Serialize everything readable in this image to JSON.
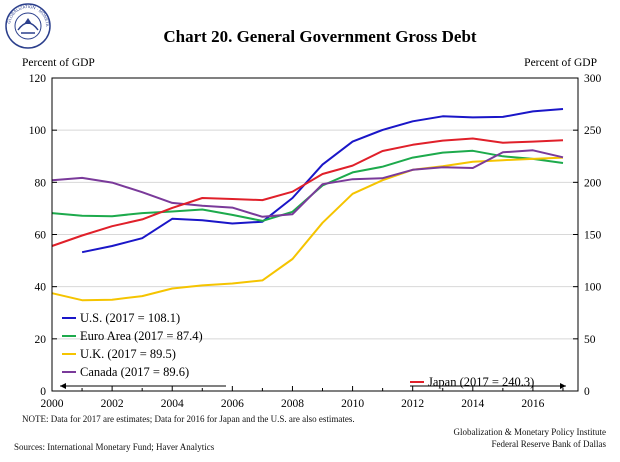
{
  "chart_data": {
    "type": "line",
    "title": "Chart 20. General Government Gross Debt",
    "ylabel_left": "Percent of GDP",
    "ylabel_right": "Percent of GDP",
    "ylim_left": [
      0,
      120
    ],
    "ylim_right": [
      0,
      300
    ],
    "yticks_left": [
      "0",
      "20",
      "40",
      "60",
      "80",
      "100",
      "120"
    ],
    "yticks_right": [
      "0",
      "50",
      "100",
      "150",
      "200",
      "250",
      "300"
    ],
    "xlim": [
      2000,
      2017.5
    ],
    "xticks": [
      "2000",
      "2002",
      "2004",
      "2006",
      "2008",
      "2010",
      "2012",
      "2014",
      "2016"
    ],
    "series": [
      {
        "name": "U.S.",
        "legend": "U.S. (2017 = 108.1)",
        "axis": "left",
        "color": "#1a16c8",
        "x": [
          2001,
          2002,
          2003,
          2004,
          2005,
          2006,
          2007,
          2008,
          2009,
          2010,
          2011,
          2012,
          2013,
          2014,
          2015,
          2016,
          2017
        ],
        "values": [
          53.2,
          55.6,
          58.6,
          66.0,
          65.5,
          64.2,
          64.9,
          74.0,
          86.8,
          95.6,
          100.1,
          103.4,
          105.3,
          104.9,
          105.1,
          107.2,
          108.1
        ]
      },
      {
        "name": "Euro Area",
        "legend": "Euro Area (2017 = 87.4)",
        "axis": "left",
        "color": "#1daa4c",
        "x": [
          2000,
          2001,
          2002,
          2003,
          2004,
          2005,
          2006,
          2007,
          2008,
          2009,
          2010,
          2011,
          2012,
          2013,
          2014,
          2015,
          2016,
          2017
        ],
        "values": [
          68.2,
          67.2,
          67.0,
          68.2,
          68.8,
          69.6,
          67.5,
          65.2,
          68.7,
          78.8,
          83.8,
          86.0,
          89.5,
          91.4,
          92.1,
          90.0,
          89.0,
          87.4
        ]
      },
      {
        "name": "U.K.",
        "legend": "U.K. (2017 = 89.5)",
        "axis": "left",
        "color": "#f5c400",
        "x": [
          2000,
          2001,
          2002,
          2003,
          2004,
          2005,
          2006,
          2007,
          2008,
          2009,
          2010,
          2011,
          2012,
          2013,
          2014,
          2015,
          2016,
          2017
        ],
        "values": [
          37.5,
          34.8,
          35.0,
          36.4,
          39.3,
          40.5,
          41.2,
          42.4,
          50.6,
          64.5,
          75.6,
          80.8,
          84.8,
          86.2,
          87.9,
          88.5,
          89.0,
          89.5
        ]
      },
      {
        "name": "Canada",
        "legend": "Canada (2017 = 89.6)",
        "axis": "left",
        "color": "#7a3a9a",
        "x": [
          2000,
          2001,
          2002,
          2003,
          2004,
          2005,
          2006,
          2007,
          2008,
          2009,
          2010,
          2011,
          2012,
          2013,
          2014,
          2015,
          2016,
          2017
        ],
        "values": [
          80.8,
          81.7,
          79.9,
          76.2,
          72.1,
          71.0,
          70.3,
          66.8,
          67.8,
          79.3,
          81.2,
          81.6,
          84.8,
          85.8,
          85.5,
          91.5,
          92.3,
          89.6
        ]
      },
      {
        "name": "Japan",
        "legend": "Japan (2017 = 240.3)",
        "axis": "right",
        "color": "#e0202a",
        "x": [
          2000,
          2001,
          2002,
          2003,
          2004,
          2005,
          2006,
          2007,
          2008,
          2009,
          2010,
          2011,
          2012,
          2013,
          2014,
          2015,
          2016,
          2017
        ],
        "values": [
          139.0,
          149.0,
          158.0,
          164.5,
          175.5,
          185.0,
          184.0,
          183.0,
          191.0,
          208.0,
          216.0,
          230.0,
          236.0,
          240.0,
          242.0,
          238.0,
          239.0,
          240.3
        ]
      }
    ]
  },
  "note": "NOTE:  Data for 2017 are estimates; Data for 2016 for Japan and the U.S. are also estimates.",
  "sources": "Sources: International Monetary Fund; Haver Analytics",
  "credit_line1": "Globalization & Monetary Policy Institute",
  "credit_line2": "Federal Reserve Bank of Dallas",
  "seal_text": "Globalization and Monetary Policy Institute"
}
